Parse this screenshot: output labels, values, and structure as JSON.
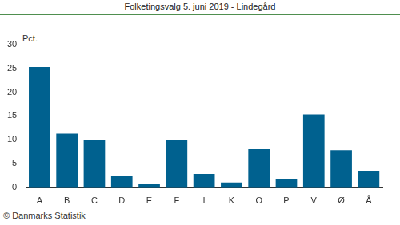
{
  "chart_data": {
    "type": "bar",
    "title": "Folketingsvalg 5. juni 2019 - Lindegård",
    "y_label": "Pct.",
    "source": "© Danmarks Statistik",
    "categories": [
      "A",
      "B",
      "C",
      "D",
      "E",
      "F",
      "I",
      "K",
      "O",
      "P",
      "V",
      "Ø",
      "Å"
    ],
    "values": [
      25.3,
      11.3,
      10.0,
      2.3,
      0.8,
      10.0,
      2.8,
      1.0,
      8.0,
      1.8,
      15.3,
      7.8,
      3.5
    ],
    "color": "#00618f",
    "ylim": [
      0,
      30
    ],
    "yticks": [
      0,
      5,
      10,
      15,
      20,
      25,
      30
    ],
    "grid": false
  }
}
